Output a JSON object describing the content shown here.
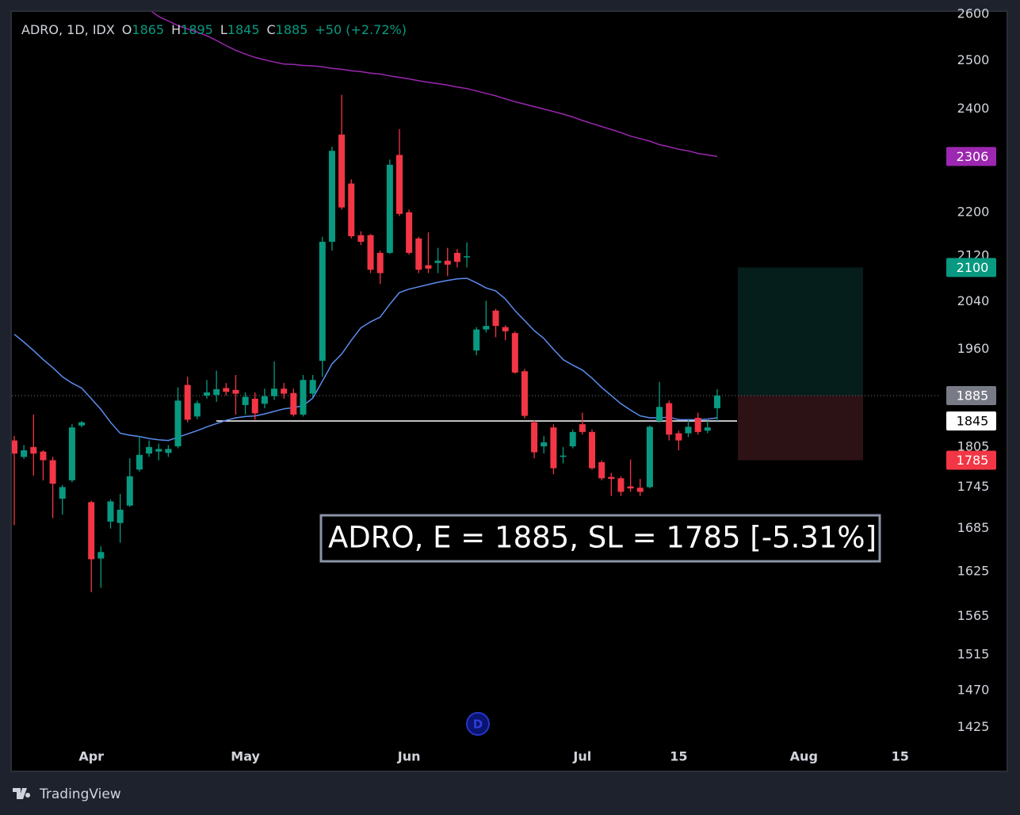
{
  "chart_data": {
    "type": "candlestick",
    "symbol_label": "ADRO, 1D, IDX",
    "ohlc_letters": [
      "O",
      "H",
      "L",
      "C"
    ],
    "change_label": "+50 (+2.72%)",
    "up_color": "#089981",
    "down_color": "#f23645",
    "log_scale": true,
    "grid": false,
    "ylim": [
      1399,
      2605
    ],
    "yticks": [
      1425,
      1470,
      1515,
      1565,
      1625,
      1685,
      1745,
      1805,
      1960,
      2040,
      2120,
      2200,
      2400,
      2500,
      2600
    ],
    "xlim": [
      -0.25,
      96
    ],
    "xticks": [
      {
        "value": 8,
        "label": "Apr"
      },
      {
        "value": 24,
        "label": "May"
      },
      {
        "value": 41,
        "label": "Jun"
      },
      {
        "value": 59,
        "label": "Jul"
      },
      {
        "value": 69,
        "label": "15"
      },
      {
        "value": 82,
        "label": "Aug"
      },
      {
        "value": 92,
        "label": "15"
      }
    ],
    "open": [
      1815,
      1790,
      1805,
      1798,
      1785,
      1728,
      1755,
      1838,
      1723,
      1643,
      1695,
      1693,
      1718,
      1771,
      1795,
      1798,
      1796,
      1806,
      1902,
      1852,
      1885,
      1886,
      1897,
      1894,
      1870,
      1880,
      1872,
      1884,
      1896,
      1889,
      1855,
      1888,
      1941,
      2146,
      2349,
      2254,
      2158,
      2158,
      2126,
      2126,
      2309,
      2200,
      2152,
      2104,
      2108,
      2112,
      2126,
      2118,
      1958,
      1993,
      2025,
      1997,
      1987,
      1924,
      1843,
      1806,
      1835,
      1790,
      1806,
      1840,
      1828,
      1782,
      1760,
      1758,
      1746,
      1744,
      1745,
      1845,
      1873,
      1826,
      1826,
      1850,
      1830,
      1865
    ],
    "high": [
      1822,
      1808,
      1855,
      1800,
      1790,
      1748,
      1840,
      1845,
      1725,
      1660,
      1727,
      1735,
      1788,
      1822,
      1815,
      1810,
      1808,
      1898,
      1915,
      1877,
      1910,
      1925,
      1905,
      1918,
      1890,
      1890,
      1896,
      1940,
      1905,
      1896,
      1918,
      1918,
      2155,
      2325,
      2429,
      2262,
      2165,
      2160,
      2130,
      2300,
      2360,
      2205,
      2155,
      2163,
      2135,
      2135,
      2133,
      2145,
      1997,
      2042,
      2028,
      2000,
      1990,
      1928,
      1846,
      1822,
      1840,
      1805,
      1832,
      1858,
      1832,
      1785,
      1766,
      1761,
      1786,
      1757,
      1838,
      1907,
      1877,
      1830,
      1847,
      1858,
      1845,
      1895
    ],
    "low": [
      1690,
      1787,
      1762,
      1755,
      1700,
      1705,
      1752,
      1835,
      1597,
      1603,
      1685,
      1665,
      1716,
      1768,
      1790,
      1785,
      1790,
      1803,
      1843,
      1848,
      1880,
      1875,
      1885,
      1855,
      1855,
      1847,
      1865,
      1878,
      1880,
      1852,
      1852,
      1882,
      1915,
      2130,
      2205,
      2152,
      2140,
      2090,
      2071,
      2124,
      2193,
      2123,
      2090,
      2090,
      2090,
      2085,
      2100,
      2100,
      1950,
      1988,
      1980,
      1975,
      1920,
      1849,
      1788,
      1795,
      1764,
      1780,
      1803,
      1824,
      1771,
      1755,
      1732,
      1732,
      1738,
      1732,
      1743,
      1842,
      1815,
      1800,
      1820,
      1824,
      1826,
      1845
    ],
    "close": [
      1795,
      1800,
      1795,
      1785,
      1750,
      1745,
      1835,
      1843,
      1642,
      1652,
      1724,
      1712,
      1761,
      1793,
      1805,
      1802,
      1802,
      1877,
      1847,
      1873,
      1890,
      1895,
      1891,
      1888,
      1883,
      1857,
      1884,
      1896,
      1888,
      1855,
      1910,
      1910,
      2146,
      2317,
      2209,
      2156,
      2146,
      2096,
      2090,
      2290,
      2197,
      2126,
      2096,
      2098,
      2112,
      2105,
      2110,
      2120,
      1993,
      1999,
      1999,
      1990,
      1922,
      1853,
      1797,
      1812,
      1773,
      1792,
      1828,
      1828,
      1773,
      1758,
      1757,
      1738,
      1743,
      1738,
      1836,
      1867,
      1824,
      1815,
      1836,
      1828,
      1835,
      1885
    ],
    "lines": [
      {
        "color": "#5b8def",
        "values": [
          1985,
          1972,
          1958,
          1943,
          1930,
          1915,
          1905,
          1897,
          1880,
          1863,
          1843,
          1826,
          1823,
          1821,
          1818,
          1816,
          1815,
          1820,
          1825,
          1830,
          1836,
          1841,
          1846,
          1850,
          1852,
          1853,
          1856,
          1860,
          1864,
          1866,
          1869,
          1881,
          1908,
          1936,
          1952,
          1975,
          1996,
          2006,
          2014,
          2036,
          2056,
          2062,
          2066,
          2070,
          2074,
          2077,
          2080,
          2081,
          2073,
          2064,
          2059,
          2045,
          2025,
          2008,
          1991,
          1978,
          1960,
          1943,
          1934,
          1926,
          1913,
          1898,
          1885,
          1872,
          1862,
          1853,
          1850,
          1850,
          1851,
          1847,
          1847,
          1847,
          1848,
          1850
        ]
      },
      {
        "color": "#9c27b0",
        "values": [
          null,
          null,
          null,
          null,
          null,
          null,
          null,
          null,
          null,
          null,
          null,
          null,
          null,
          null,
          2610,
          2595,
          2585,
          2575,
          2568,
          2561,
          2553,
          2543,
          2532,
          2522,
          2514,
          2507,
          2502,
          2497,
          2493,
          2492,
          2490,
          2489,
          2487,
          2484,
          2482,
          2479,
          2477,
          2474,
          2472,
          2468,
          2465,
          2462,
          2458,
          2455,
          2452,
          2449,
          2445,
          2442,
          2437,
          2432,
          2427,
          2421,
          2415,
          2410,
          2405,
          2400,
          2395,
          2390,
          2384,
          2377,
          2371,
          2365,
          2359,
          2353,
          2346,
          2341,
          2336,
          2329,
          2325,
          2320,
          2317,
          2312,
          2309,
          2306
        ]
      }
    ],
    "level": 1845,
    "position": {
      "entry": 1885,
      "target": 2100,
      "stop": 1785
    },
    "annotation": "ADRO, E = 1885, SL = 1785 [-5.31%]",
    "event_marker": "D"
  },
  "footer": {
    "brand": "TradingView"
  }
}
